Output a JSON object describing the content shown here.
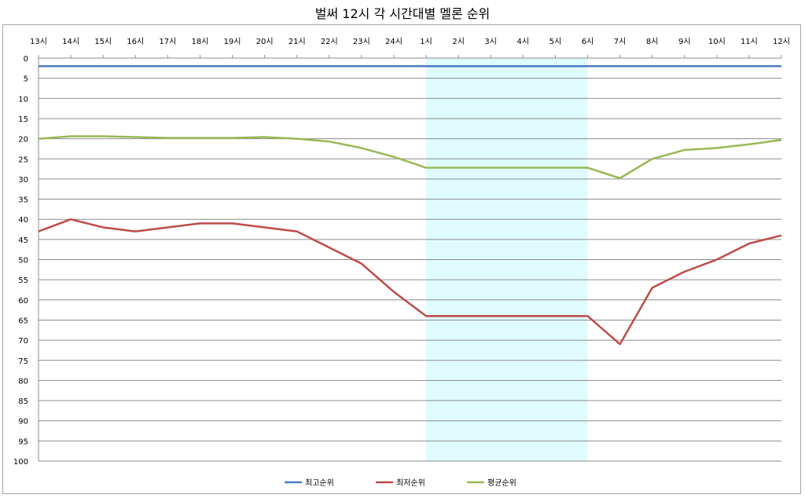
{
  "chart_data": {
    "type": "line",
    "title": "벌써 12시 각 시간대별 멜론 순위",
    "categories": [
      "13시",
      "14시",
      "15시",
      "16시",
      "17시",
      "18시",
      "19시",
      "20시",
      "21시",
      "22시",
      "23시",
      "24시",
      "1시",
      "2시",
      "3시",
      "4시",
      "5시",
      "6시",
      "7시",
      "8시",
      "9시",
      "10시",
      "11시",
      "12시"
    ],
    "y_ticks": [
      "0",
      "5",
      "10",
      "15",
      "20",
      "25",
      "30",
      "35",
      "40",
      "45",
      "50",
      "55",
      "60",
      "65",
      "70",
      "75",
      "80",
      "85",
      "90",
      "95",
      "100"
    ],
    "ylim": [
      0,
      100
    ],
    "y_reversed": true,
    "x_axis_position": "top",
    "grid": "horizontal",
    "legend": "bottom",
    "highlight_range": [
      "1시",
      "6시"
    ],
    "highlight_color": "#e0fbfd",
    "series": [
      {
        "name": "최고순위",
        "color": "#4a7ebb",
        "values": [
          2,
          2,
          2,
          2,
          2,
          2,
          2,
          2,
          2,
          2,
          2,
          2,
          2,
          2,
          2,
          2,
          2,
          2,
          2,
          2,
          2,
          2,
          2,
          2
        ]
      },
      {
        "name": "최저순위",
        "color": "#be4b48",
        "values": [
          43,
          40,
          42,
          43,
          42,
          41,
          41,
          42,
          43,
          47,
          51,
          58,
          64,
          64,
          64,
          64,
          64,
          64,
          71,
          57,
          53,
          50,
          46,
          44
        ]
      },
      {
        "name": "평균순위",
        "color": "#98b954",
        "values": [
          20,
          19.4,
          19.4,
          19.6,
          19.8,
          19.8,
          19.8,
          19.6,
          20,
          20.7,
          22.3,
          24.5,
          27.2,
          27.2,
          27.2,
          27.2,
          27.2,
          27.2,
          29.8,
          25,
          22.8,
          22.3,
          21.4,
          20.3
        ]
      }
    ]
  }
}
